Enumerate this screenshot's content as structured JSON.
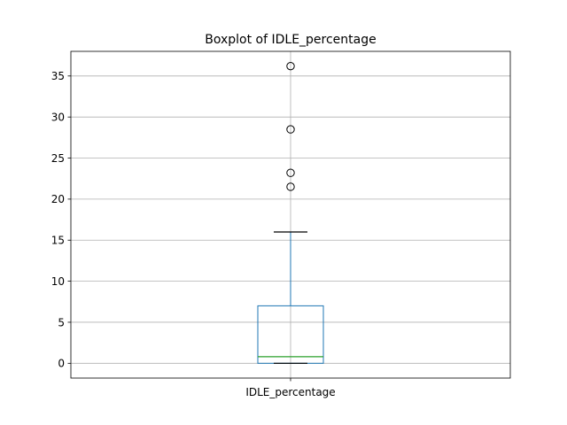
{
  "chart_data": {
    "type": "boxplot",
    "title": "Boxplot of IDLE_percentage",
    "xlabel": "",
    "ylabel": "",
    "categories": [
      "IDLE_percentage"
    ],
    "box": {
      "min": 0,
      "q1": 0,
      "median": 0.8,
      "q3": 7.0,
      "whisker_low": 0,
      "whisker_high": 16.0,
      "outliers": [
        21.5,
        23.2,
        28.5,
        36.2
      ]
    },
    "ylim": [
      -1.8,
      38.0
    ],
    "yticks": [
      0,
      5,
      10,
      15,
      20,
      25,
      30,
      35
    ],
    "grid": true,
    "colors": {
      "box": "#1f77b4",
      "median": "#2ca02c",
      "whisker_cap": "#000000",
      "outlier_edge": "#000000",
      "grid": "#b0b0b0"
    }
  }
}
